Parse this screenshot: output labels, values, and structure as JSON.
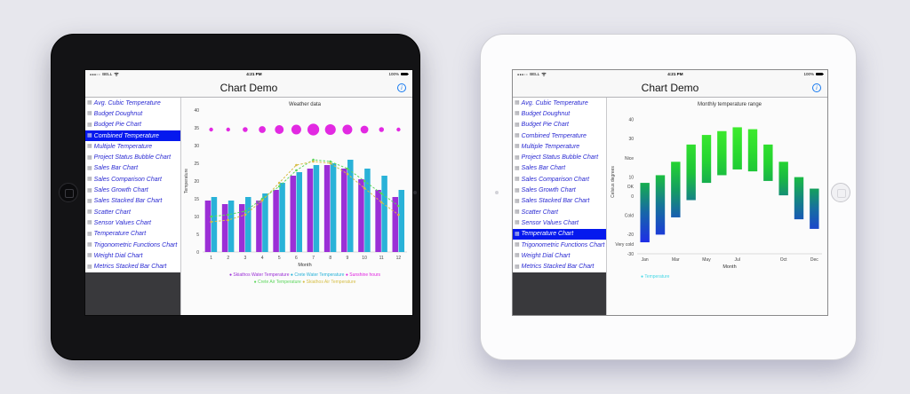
{
  "colors": {
    "selected_row_bg": "#0519ee",
    "sidebar_link": "#2a2ad2",
    "info_icon_blue": "#1478f0",
    "page_background": "#e7e7ed"
  },
  "status_bar": {
    "signal_dots": "●●●○○",
    "carrier": "BELL",
    "time": "4:21 PM",
    "battery_percent": "100%"
  },
  "nav": {
    "title": "Chart Demo",
    "info_label": "i"
  },
  "sidebar": {
    "items": [
      "Avg. Cubic Temperature",
      "Budget Doughnut",
      "Budget Pie Chart",
      "Combined Temperature",
      "Multiple Temperature",
      "Project Status Bubble Chart",
      "Sales Bar Chart",
      "Sales Comparison Chart",
      "Sales Growth Chart",
      "Sales Stacked Bar Chart",
      "Scatter Chart",
      "Sensor Values Chart",
      "Temperature Chart",
      "Trigonometric Functions Chart",
      "Weight Dial Chart",
      "Metrics Stacked Bar Chart"
    ]
  },
  "devices": [
    {
      "name": "black-ipad",
      "selected_item": "Combined Temperature",
      "selected_index": 3,
      "chart_index": 0
    },
    {
      "name": "white-ipad",
      "selected_item": "Temperature Chart",
      "selected_index": 12,
      "chart_index": 1
    }
  ],
  "chart_data": [
    {
      "type": "bar",
      "subtype": "combo-bar-line-bubble",
      "title": "Weather data",
      "xlabel": "Month",
      "ylabel": "Temperature",
      "ylim": [
        0,
        40
      ],
      "yticks": [
        0,
        5,
        10,
        15,
        20,
        25,
        30,
        35,
        40
      ],
      "categories": [
        "1",
        "2",
        "3",
        "4",
        "5",
        "6",
        "7",
        "8",
        "9",
        "10",
        "11",
        "12"
      ],
      "series": [
        {
          "name": "Skiathos Water Temperature",
          "kind": "bar",
          "color": "#9b2fd6",
          "values": [
            14.5,
            13.5,
            13.5,
            14.5,
            17.5,
            21.5,
            23.5,
            24.5,
            23.5,
            20.5,
            17.5,
            15.5
          ]
        },
        {
          "name": "Crete Water Temperature",
          "kind": "bar",
          "color": "#29b2d8",
          "values": [
            15.5,
            14.5,
            15.5,
            16.5,
            19.5,
            22.5,
            24.5,
            25,
            26,
            23.5,
            21.5,
            17.5
          ]
        },
        {
          "name": "Sunshine hours",
          "kind": "bubble",
          "color": "#e01ee0",
          "bubble_y": 34.5,
          "values": [
            4,
            4,
            5,
            7,
            9,
            10,
            12,
            11,
            10,
            8,
            5,
            4
          ]
        },
        {
          "name": "Crete Air Temperature",
          "kind": "line",
          "color": "#5cd65c",
          "values": [
            10,
            10.5,
            11.5,
            15,
            18.5,
            23,
            26,
            25.5,
            23.5,
            20,
            16.5,
            13
          ]
        },
        {
          "name": "Skiathos Air Temperature",
          "kind": "line",
          "color": "#d6be46",
          "values": [
            8.5,
            9,
            10.5,
            14.5,
            19.5,
            24.5,
            25.5,
            25,
            22,
            18,
            14,
            10.5
          ]
        }
      ],
      "legend_rows": [
        [
          0,
          1,
          2
        ],
        [
          3,
          4
        ]
      ]
    },
    {
      "type": "bar",
      "subtype": "floating-range-bar",
      "title": "Monthly temperature range",
      "xlabel": "Month",
      "ylabel": "Celsius degrees",
      "ylim": [
        -30,
        45
      ],
      "yticks": [
        [
          40,
          "40"
        ],
        [
          30,
          "30"
        ],
        [
          20,
          "Nice"
        ],
        [
          10,
          "10"
        ],
        [
          5,
          "OK"
        ],
        [
          0,
          "0"
        ],
        [
          -10,
          "Cold"
        ],
        [
          -20,
          "-20"
        ],
        [
          -25,
          "Very cold"
        ],
        [
          -30,
          "-30"
        ]
      ],
      "categories": [
        "Jan",
        "Feb",
        "Mar",
        "Apr",
        "May",
        "Jun",
        "Jul",
        "Aug",
        "Sep",
        "Oct",
        "Nov",
        "Dec"
      ],
      "shown_xticks": [
        {
          "index": 0,
          "label": "Jan"
        },
        {
          "index": 2,
          "label": "Mar"
        },
        {
          "index": 4,
          "label": "May"
        },
        {
          "index": 6,
          "label": "Jul"
        },
        {
          "index": 9,
          "label": "Oct"
        },
        {
          "index": 11,
          "label": "Dec"
        }
      ],
      "series": [
        {
          "name": "Temperature",
          "kind": "range-bar",
          "legend_color": "#46d8e6",
          "ranges": [
            [
              -24,
              7
            ],
            [
              -20,
              11
            ],
            [
              -11,
              18
            ],
            [
              -2,
              27
            ],
            [
              7,
              32
            ],
            [
              11,
              34
            ],
            [
              14,
              36
            ],
            [
              13,
              35
            ],
            [
              8,
              27
            ],
            [
              0.5,
              18
            ],
            [
              -12,
              10
            ],
            [
              -17,
              4
            ]
          ]
        }
      ],
      "gradient_anchors": [
        [
          -25,
          [
            30,
            42,
            235
          ]
        ],
        [
          -5,
          [
            22,
            115,
            155
          ]
        ],
        [
          5,
          [
            20,
            165,
            85
          ]
        ],
        [
          15,
          [
            32,
            208,
            48
          ]
        ],
        [
          36,
          [
            62,
            235,
            46
          ]
        ]
      ]
    }
  ]
}
